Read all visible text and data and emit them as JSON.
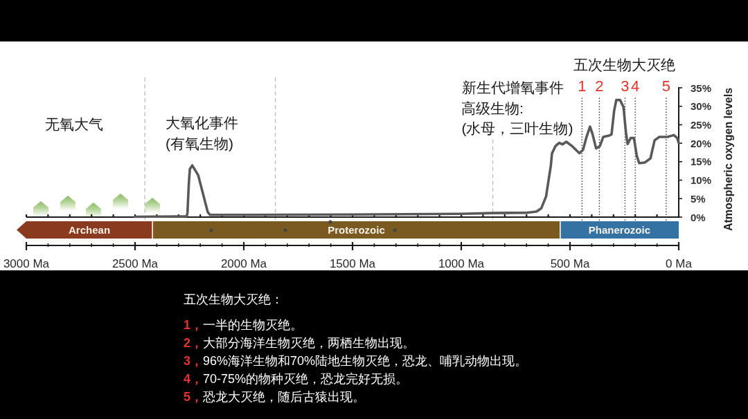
{
  "chart_data": [
    {
      "type": "line",
      "title": "五次生物大灭绝",
      "ylabel": "Atmospheric oxygen levels",
      "x": [
        2500,
        2270,
        2262,
        2259,
        2253,
        2248,
        2237,
        2210,
        2187,
        2166,
        2155,
        2000,
        1500,
        1000,
        853,
        698,
        654,
        632,
        610,
        588,
        583,
        567,
        550,
        534,
        517,
        490,
        457,
        440,
        424,
        408,
        396,
        380,
        363,
        347,
        319,
        309,
        297,
        287,
        270,
        254,
        243,
        235,
        221,
        206,
        193,
        182,
        155,
        130,
        111,
        89,
        51,
        23,
        7,
        0
      ],
      "series": [
        {
          "color": "#595959",
          "values": [
            0.1,
            0.2,
            0.3,
            1.1,
            8.8,
            13,
            14,
            11.4,
            6.2,
            1.4,
            0.6,
            0.6,
            0.7,
            0.9,
            1.1,
            1.2,
            1.5,
            2.4,
            5.6,
            14,
            17.2,
            19.2,
            20.1,
            19.7,
            20.4,
            19.2,
            17.3,
            18.2,
            21.7,
            24.5,
            22.4,
            18.6,
            19.2,
            21.7,
            22.1,
            22.4,
            28.8,
            31.7,
            31.7,
            29.8,
            23,
            19.8,
            21.4,
            21.4,
            16.6,
            14.6,
            14.8,
            15.9,
            20.8,
            21.7,
            21.7,
            22.2,
            21.4,
            20.1
          ]
        }
      ],
      "xlim": [
        3000,
        0
      ],
      "ylim": [
        0,
        35
      ],
      "xticks": [
        3000,
        2900,
        2800,
        2700,
        2600,
        2500,
        2400,
        2300,
        2200,
        2100,
        2000,
        1900,
        1800,
        1700,
        1600,
        1500,
        1400,
        1300,
        1200,
        1100,
        1000,
        900,
        800,
        700,
        600,
        500,
        400,
        300,
        200,
        100,
        0
      ],
      "yticks": [
        {
          "value": 0,
          "label": "0%"
        },
        {
          "value": 5,
          "label": "5%"
        },
        {
          "value": 10,
          "label": "10%"
        },
        {
          "value": 15,
          "label": "15%"
        },
        {
          "value": 20,
          "label": "20%"
        },
        {
          "value": 25,
          "label": "25%"
        },
        {
          "value": 30,
          "label": "30%"
        },
        {
          "value": 35,
          "label": "35%"
        }
      ],
      "tick_labels": "y",
      "ref_lines": [
        {
          "axis": "x",
          "value": 2455,
          "color": "#bfbfbf",
          "line_style": "dashed"
        },
        {
          "axis": "x",
          "value": 1855,
          "color": "#bfbfbf",
          "line_style": "dashed"
        },
        {
          "axis": "x",
          "value": 855,
          "color": "#bfbfbf",
          "line_style": "dashed"
        },
        {
          "axis": "x",
          "value": 445,
          "color": "#333333",
          "line_style": "dotted"
        },
        {
          "axis": "x",
          "value": 365,
          "color": "#333333",
          "line_style": "dotted"
        },
        {
          "axis": "x",
          "value": 247,
          "color": "#333333",
          "line_style": "dotted"
        },
        {
          "axis": "x",
          "value": 200,
          "color": "#333333",
          "line_style": "dotted"
        },
        {
          "axis": "x",
          "value": 58,
          "color": "#333333",
          "line_style": "dotted"
        }
      ],
      "annotations": [
        "1",
        "2",
        "3",
        "4",
        "5",
        "无氧大气",
        "大氧化事件",
        "(有氧生物)",
        "新生代增氧事件",
        "高级生物:",
        "(水母，三叶生物)",
        "五次生物大灭绝：",
        "**1，**一半的生物灭绝。",
        "**2，**大部分海洋生物灭绝，两栖生物出现。",
        "**3，**96%海洋生物和70%陆地生物灭绝，恐龙、哺乳动物出现。",
        "**4，**70-75%的物种灭绝，恐龙完好无损。",
        "**5，**恐龙大灭绝，随后古猿出现。"
      ]
    },
    {
      "type": "bar",
      "orientation": "horizontal",
      "stacked": true,
      "categories": [
        null
      ],
      "series": [
        {
          "name": "Phanerozoic",
          "color": "#3572a4",
          "values": [
            545
          ]
        },
        {
          "name": "Proterozoic",
          "color": "#7b5a22",
          "values": [
            1875
          ]
        },
        {
          "name": "Archean",
          "color": "#8a3a1e",
          "values": [
            580
          ]
        }
      ],
      "xlim": [
        3000,
        0
      ],
      "xticks": [
        {
          "value": 3000,
          "label": "3000 Ma"
        },
        {
          "value": 2900,
          "label": null
        },
        {
          "value": 2800,
          "label": null
        },
        {
          "value": 2700,
          "label": null
        },
        {
          "value": 2600,
          "label": null
        },
        {
          "value": 2500,
          "label": "2500 Ma"
        },
        {
          "value": 2400,
          "label": null
        },
        {
          "value": 2300,
          "label": null
        },
        {
          "value": 2200,
          "label": null
        },
        {
          "value": 2100,
          "label": null
        },
        {
          "value": 2000,
          "label": "2000 Ma"
        },
        {
          "value": 1900,
          "label": null
        },
        {
          "value": 1800,
          "label": null
        },
        {
          "value": 1700,
          "label": null
        },
        {
          "value": 1600,
          "label": null
        },
        {
          "value": 1500,
          "label": "1500 Ma"
        },
        {
          "value": 1400,
          "label": null
        },
        {
          "value": 1300,
          "label": null
        },
        {
          "value": 1200,
          "label": null
        },
        {
          "value": 1100,
          "label": null
        },
        {
          "value": 1000,
          "label": "1000 Ma"
        },
        {
          "value": 900,
          "label": null
        },
        {
          "value": 800,
          "label": null
        },
        {
          "value": 700,
          "label": null
        },
        {
          "value": 600,
          "label": null
        },
        {
          "value": 500,
          "label": "500 Ma"
        },
        {
          "value": 400,
          "label": null
        },
        {
          "value": 300,
          "label": null
        },
        {
          "value": 200,
          "label": null
        },
        {
          "value": 100,
          "label": null
        },
        {
          "value": 0,
          "label": "0 Ma"
        }
      ],
      "tick_labels": "x"
    }
  ]
}
